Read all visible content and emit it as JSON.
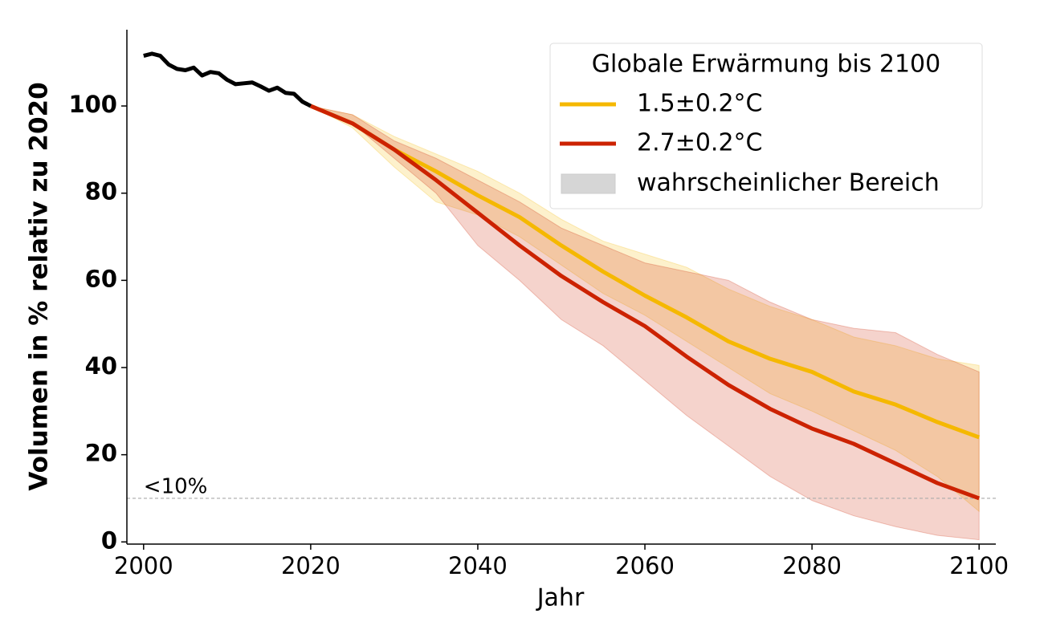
{
  "chart_data": {
    "type": "line",
    "xlabel": "Jahr",
    "ylabel": "Volumen in % relativ zu 2020",
    "xlim": [
      1998,
      2102
    ],
    "ylim": [
      -0.5,
      117.5
    ],
    "xticks": [
      2000,
      2020,
      2040,
      2060,
      2080,
      2100
    ],
    "yticks": [
      0,
      20,
      40,
      60,
      80,
      100
    ],
    "history": {
      "color": "#000000",
      "x": [
        2000,
        2001,
        2002,
        2003,
        2004,
        2005,
        2006,
        2007,
        2008,
        2009,
        2010,
        2011,
        2012,
        2013,
        2014,
        2015,
        2016,
        2017,
        2018,
        2019,
        2020
      ],
      "values": [
        111.5,
        112,
        111.5,
        109.5,
        108.5,
        108.2,
        108.8,
        107,
        107.8,
        107.5,
        106,
        105,
        105.2,
        105.4,
        104.5,
        103.5,
        104.2,
        103,
        102.8,
        101,
        100
      ]
    },
    "x": [
      2020,
      2025,
      2030,
      2035,
      2040,
      2045,
      2050,
      2055,
      2060,
      2065,
      2070,
      2075,
      2080,
      2085,
      2090,
      2095,
      2100
    ],
    "series": [
      {
        "name": "1.5±0.2°C",
        "color": "#f5b800",
        "values": [
          100,
          96,
          90,
          85,
          79.5,
          74.5,
          68,
          62,
          56.5,
          51.5,
          46,
          42,
          39,
          34.5,
          31.5,
          27.5,
          24
        ],
        "lower": [
          100,
          95,
          86,
          78,
          75,
          70,
          63.5,
          57,
          52,
          46,
          40,
          34,
          30,
          25.5,
          21,
          15,
          7
        ],
        "upper": [
          100,
          98,
          93,
          89,
          85,
          80,
          74,
          69,
          66,
          63,
          58,
          54,
          51,
          47,
          45,
          42,
          40.5
        ]
      },
      {
        "name": "2.7±0.2°C",
        "color": "#cc2200",
        "values": [
          100,
          96,
          90,
          83,
          75.5,
          68,
          61,
          55,
          49.5,
          42.5,
          36,
          30.5,
          26,
          22.5,
          18,
          13.5,
          10
        ],
        "lower": [
          100,
          96,
          88,
          80,
          68,
          60,
          51,
          45,
          37,
          29,
          22,
          15,
          9.5,
          6,
          3.5,
          1.5,
          0.5
        ],
        "upper": [
          100,
          98,
          92,
          88,
          83,
          78,
          72,
          68,
          64,
          62,
          60,
          55,
          51,
          49,
          48,
          43,
          39
        ]
      }
    ],
    "band_label": "wahrscheinlicher Bereich",
    "legend_title": "Globale Erwärmung bis 2100",
    "legend": "upper right",
    "threshold": {
      "value": 10,
      "label": "<10%",
      "color": "#aaaaaa"
    }
  }
}
